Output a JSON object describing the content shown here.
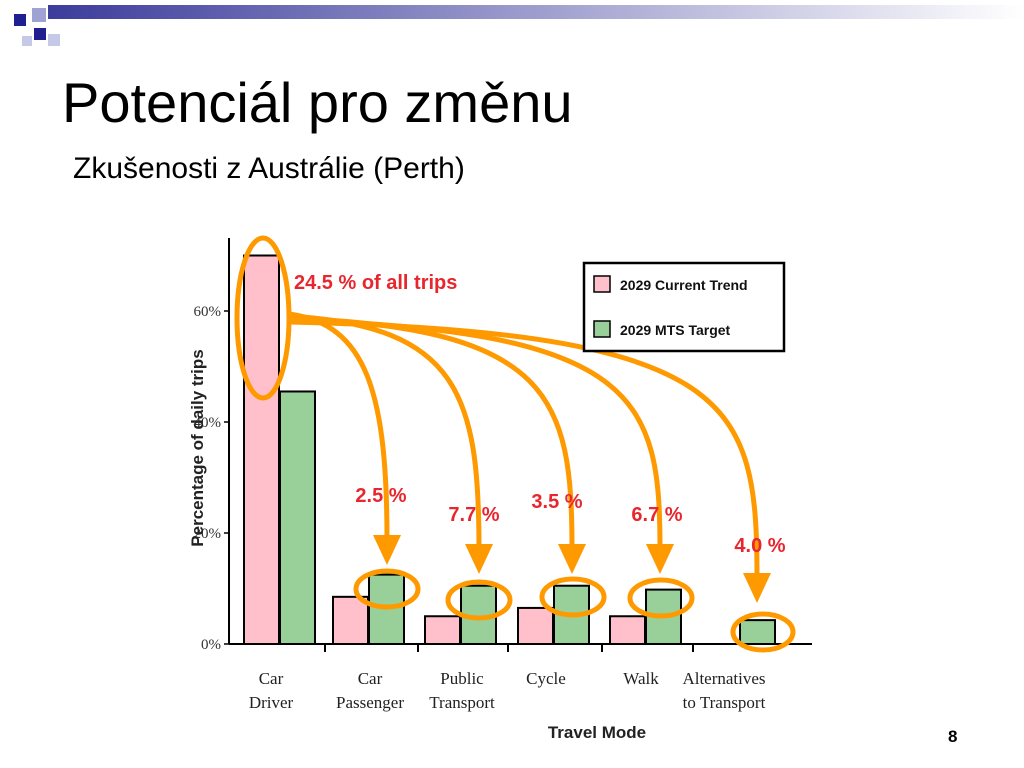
{
  "slide": {
    "title": "Potenciál pro změnu",
    "subtitle": "Zkušenosti z Austrálie (Perth)",
    "page_number": "8",
    "colors": {
      "accent_blue": "#1f1f8f",
      "light_blue": "#9fa3d3"
    }
  },
  "chart_data": {
    "type": "bar",
    "categories": [
      [
        "Car",
        "Driver"
      ],
      [
        "Car",
        "Passenger"
      ],
      [
        "Public",
        "Transport"
      ],
      [
        "Cycle"
      ],
      [
        "Walk"
      ],
      [
        "Alternatives",
        "to Transport"
      ]
    ],
    "series": [
      {
        "name": "2029 Current Trend",
        "color": "#ffc0cb",
        "values": [
          70,
          8.5,
          5,
          6.5,
          5,
          0
        ]
      },
      {
        "name": "2029 MTS Target",
        "color": "#99d099",
        "values": [
          45.5,
          12.5,
          10.5,
          10.5,
          9.8,
          4.3
        ]
      }
    ],
    "xlabel": "Travel Mode",
    "ylabel": "Percentage of daily trips",
    "yticks": [
      "0%",
      "20%",
      "40%",
      "60%"
    ],
    "ytick_values": [
      0,
      20,
      40,
      60
    ],
    "ylim": [
      0,
      72
    ],
    "legend_position": "top-right",
    "annotations": {
      "total": "24.5 % of all trips",
      "shifts": [
        "2.5 %",
        "7.7 %",
        "3.5 %",
        "6.7 %",
        "4.0 %"
      ]
    },
    "highlight_color": "#ff9900"
  }
}
